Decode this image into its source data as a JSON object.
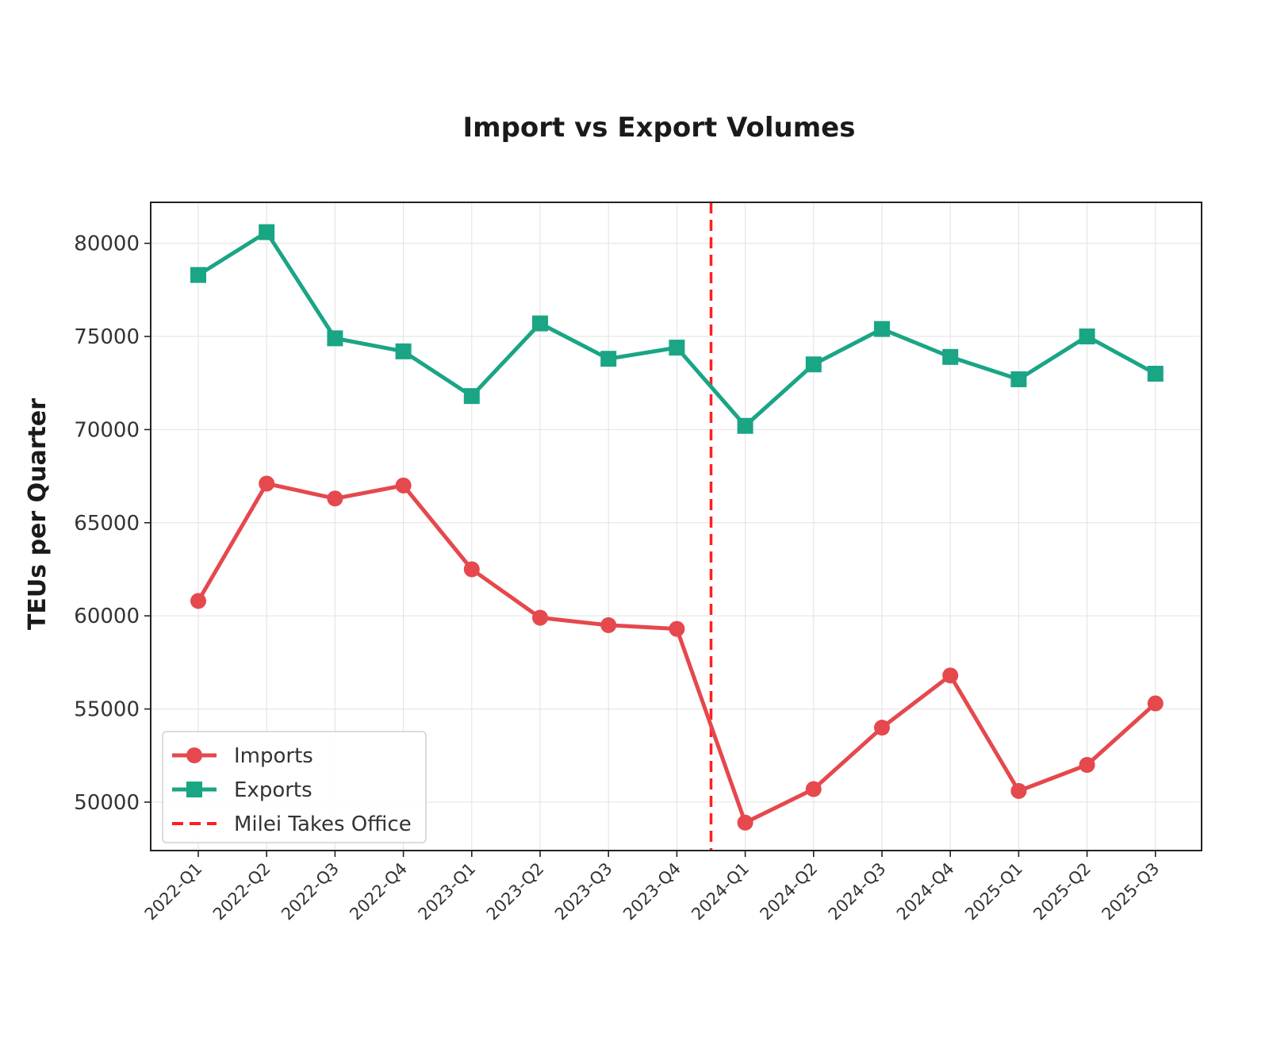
{
  "chart_data": {
    "type": "line",
    "title": "Import vs Export Volumes",
    "xlabel": "",
    "ylabel": "TEUs per Quarter",
    "categories": [
      "2022-Q1",
      "2022-Q2",
      "2022-Q3",
      "2022-Q4",
      "2023-Q1",
      "2023-Q2",
      "2023-Q3",
      "2023-Q4",
      "2024-Q1",
      "2024-Q2",
      "2024-Q3",
      "2024-Q4",
      "2025-Q1",
      "2025-Q2",
      "2025-Q3"
    ],
    "ylim": [
      47400,
      82200
    ],
    "yticks": [
      50000,
      55000,
      60000,
      65000,
      70000,
      75000,
      80000
    ],
    "grid": true,
    "legend_position": "lower-left",
    "series": [
      {
        "name": "Imports",
        "color": "#e5484d",
        "marker": "circle",
        "values": [
          60800,
          67100,
          66300,
          67000,
          62500,
          59900,
          59500,
          59300,
          48900,
          50700,
          54000,
          56800,
          50600,
          52000,
          55300
        ]
      },
      {
        "name": "Exports",
        "color": "#1aa585",
        "marker": "square",
        "values": [
          78300,
          80600,
          74900,
          74200,
          71800,
          75700,
          73800,
          74400,
          70200,
          73500,
          75400,
          73900,
          72700,
          75000,
          73000
        ]
      }
    ],
    "annotation": {
      "label": "Milei Takes Office",
      "color": "#ff1f1f",
      "style": "dashed",
      "x_between": [
        "2023-Q4",
        "2024-Q1"
      ]
    }
  }
}
